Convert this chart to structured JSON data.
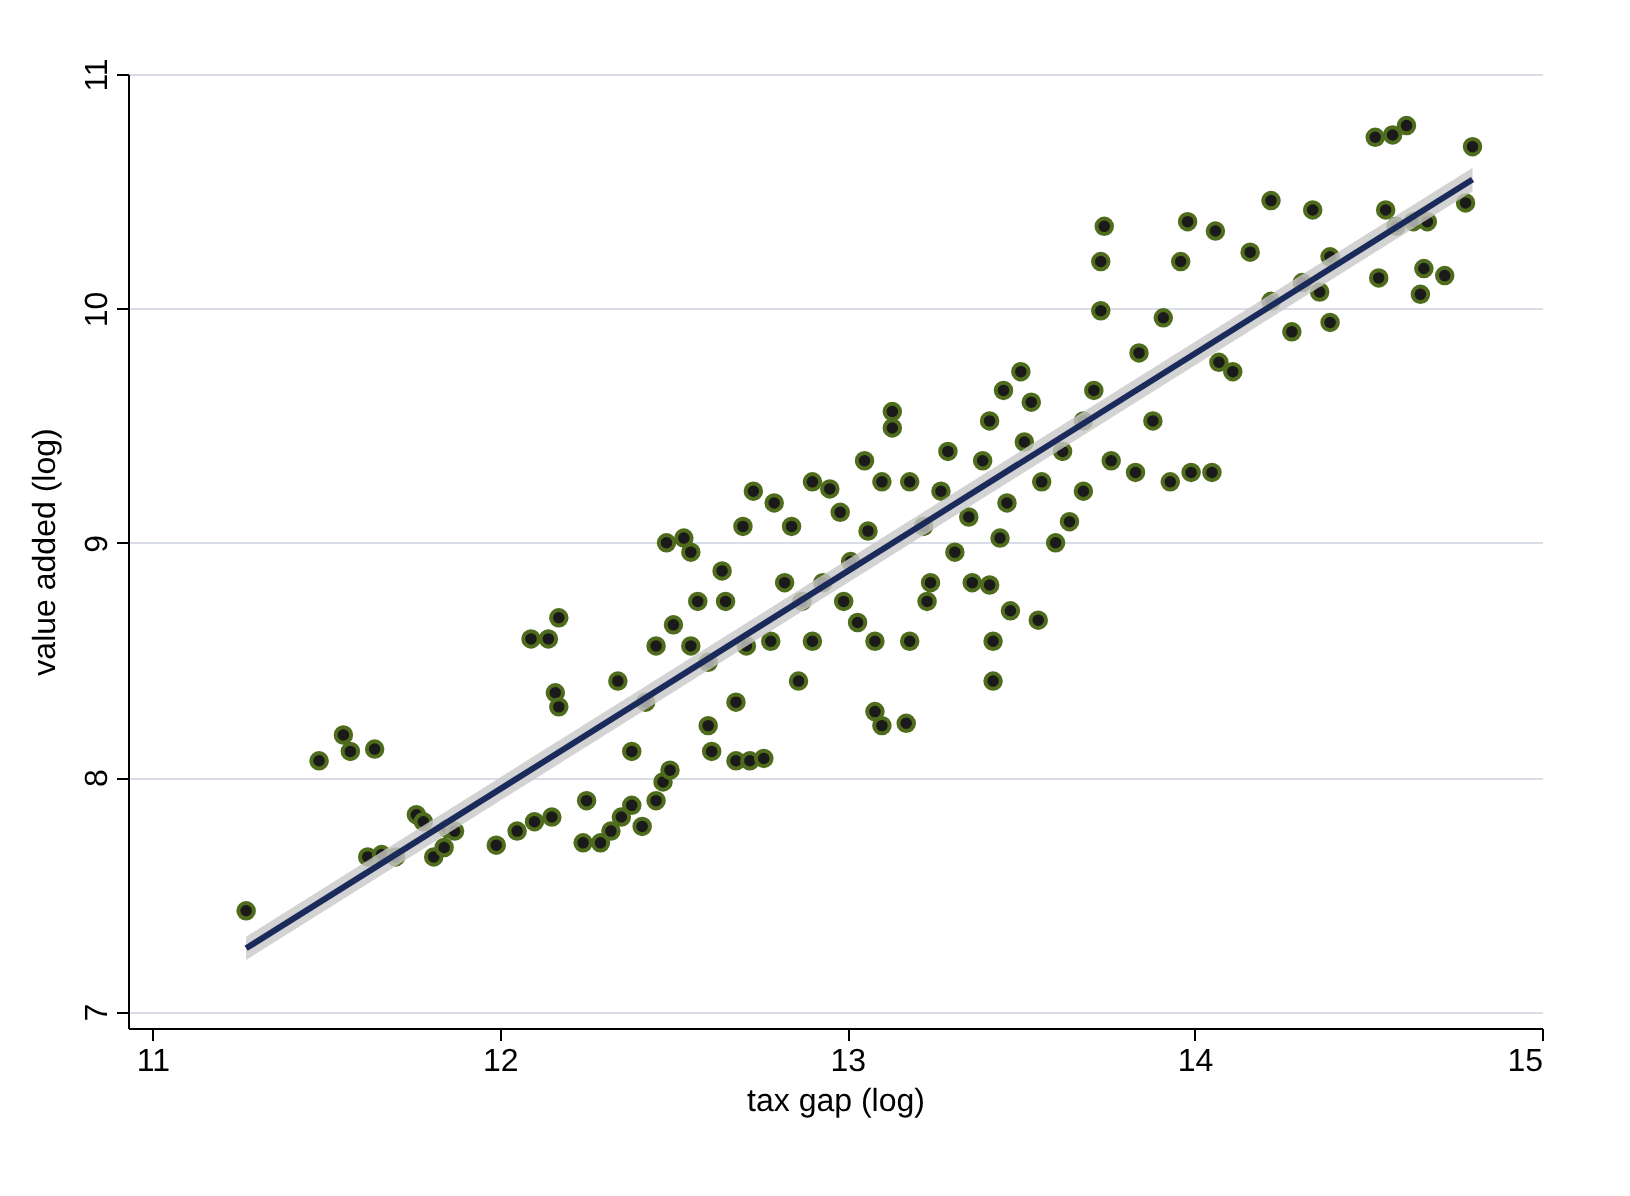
{
  "chart_data": {
    "type": "scatter",
    "xlabel": "tax gap (log)",
    "ylabel": "value added (log)",
    "xlim": [
      10.93,
      15.0
    ],
    "ylim": [
      6.93,
      11.0
    ],
    "xticks": [
      11,
      12,
      13,
      14,
      15
    ],
    "yticks": [
      7,
      8,
      9,
      10,
      11
    ],
    "grid": "y",
    "marker": "circle",
    "series": [
      {
        "color": "#4f6b1c",
        "x": [
          11.27,
          11.48,
          11.55,
          11.57,
          11.64,
          11.62,
          11.66,
          11.7,
          11.76,
          11.78,
          11.81,
          11.85,
          11.87,
          11.84,
          11.99,
          12.05,
          12.1,
          12.15,
          12.09,
          12.14,
          12.17,
          12.16,
          12.17,
          12.24,
          12.29,
          12.32,
          12.25,
          12.35,
          12.38,
          12.41,
          12.45,
          12.47,
          12.49,
          12.42,
          12.48,
          12.53,
          12.55,
          12.6,
          12.61,
          12.68,
          12.72,
          12.76,
          12.6,
          12.55,
          12.5,
          12.57,
          12.64,
          12.7,
          12.73,
          12.79,
          12.84,
          12.9,
          12.95,
          12.82,
          12.87,
          12.86,
          12.78,
          12.71,
          12.65,
          12.9,
          12.93,
          12.99,
          13.03,
          13.08,
          13.01,
          13.06,
          13.1,
          13.13,
          13.13,
          13.08,
          13.1,
          13.17,
          13.18,
          13.23,
          13.22,
          13.27,
          13.31,
          13.36,
          13.35,
          13.39,
          13.41,
          13.45,
          13.5,
          13.53,
          13.51,
          13.46,
          13.44,
          13.41,
          13.42,
          13.47,
          13.6,
          13.56,
          13.62,
          13.68,
          13.71,
          13.73,
          13.73,
          13.74,
          13.76,
          13.83,
          13.88,
          13.91,
          13.96,
          13.98,
          13.99,
          13.93,
          14.05,
          14.07,
          14.11,
          14.06,
          14.16,
          14.22,
          14.28,
          14.31,
          14.36,
          14.39,
          14.34,
          14.39,
          14.52,
          14.57,
          14.61,
          14.55,
          14.58,
          14.53,
          14.63,
          14.65,
          14.72,
          14.78,
          14.8,
          14.66,
          14.67,
          14.22,
          13.84,
          13.55,
          13.42,
          13.24,
          12.38,
          12.34,
          12.45,
          12.68,
          12.98,
          13.05,
          13.18,
          13.29,
          13.64,
          13.68
        ],
        "values": [
          7.43,
          8.07,
          8.18,
          8.11,
          8.12,
          7.66,
          7.67,
          7.66,
          7.84,
          7.81,
          7.66,
          7.78,
          7.77,
          7.7,
          7.71,
          7.77,
          7.81,
          7.83,
          8.59,
          8.59,
          8.68,
          8.36,
          8.3,
          7.72,
          7.72,
          7.77,
          7.9,
          7.83,
          7.88,
          7.79,
          7.9,
          7.98,
          8.03,
          8.32,
          9.0,
          9.02,
          8.96,
          8.22,
          8.11,
          8.07,
          8.07,
          8.08,
          8.49,
          8.56,
          8.65,
          8.75,
          8.88,
          9.07,
          9.22,
          9.17,
          9.07,
          9.26,
          9.23,
          8.83,
          8.75,
          8.41,
          8.58,
          8.56,
          8.75,
          8.58,
          8.83,
          8.75,
          8.66,
          8.58,
          8.92,
          9.05,
          9.26,
          9.56,
          9.49,
          8.28,
          8.22,
          8.23,
          8.58,
          8.75,
          9.07,
          9.22,
          8.96,
          8.83,
          9.11,
          9.35,
          9.52,
          9.65,
          9.73,
          9.6,
          9.43,
          9.17,
          9.02,
          8.82,
          8.58,
          8.71,
          9.0,
          9.26,
          9.39,
          9.52,
          9.65,
          9.99,
          10.2,
          10.35,
          9.35,
          9.3,
          9.52,
          9.96,
          10.2,
          10.37,
          9.3,
          9.26,
          9.3,
          9.77,
          9.73,
          10.33,
          10.24,
          10.03,
          9.9,
          10.11,
          10.07,
          9.94,
          10.42,
          10.22,
          10.73,
          10.74,
          10.78,
          10.42,
          10.35,
          10.13,
          10.37,
          10.06,
          10.14,
          10.45,
          10.69,
          10.17,
          10.37,
          10.46,
          9.81,
          8.67,
          8.41,
          8.83,
          8.11,
          8.41,
          8.56,
          8.32,
          9.13,
          9.35,
          9.26,
          9.39,
          9.09,
          9.22
        ]
      },
      {
        "type": "line",
        "marker": "none",
        "color": "#1a2a5a",
        "x": [
          11.27,
          14.8
        ],
        "values": [
          7.27,
          10.55
        ],
        "lower": [
          7.22,
          10.5
        ],
        "upper": [
          7.32,
          10.6
        ]
      }
    ]
  }
}
